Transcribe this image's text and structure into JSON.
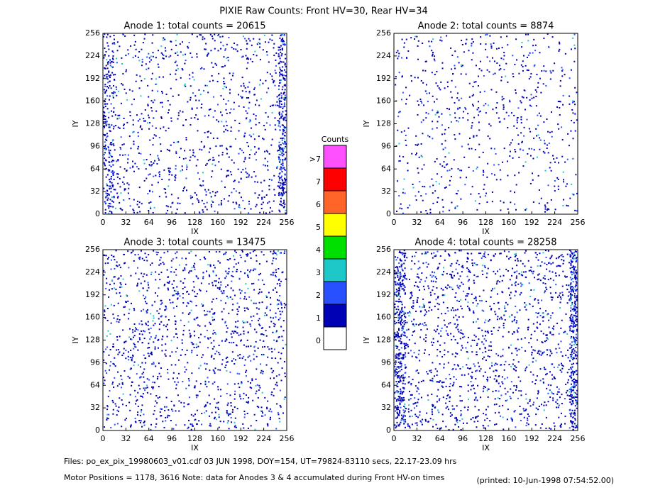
{
  "title": "PIXIE Raw Counts:  Front HV=30, Rear HV=34",
  "chart_data": [
    {
      "type": "heatmap",
      "title": "Anode 1: total counts = 20615",
      "xlabel": "IX",
      "ylabel": "IY",
      "xlim": [
        0,
        256
      ],
      "ylim": [
        0,
        256
      ],
      "xticks": [
        0,
        32,
        64,
        96,
        128,
        160,
        192,
        224,
        256
      ],
      "yticks": [
        0,
        32,
        64,
        96,
        128,
        160,
        192,
        224,
        256
      ]
    },
    {
      "type": "heatmap",
      "title": "Anode 2: total counts = 8874",
      "xlabel": "IX",
      "ylabel": "IY",
      "xlim": [
        0,
        256
      ],
      "ylim": [
        0,
        256
      ],
      "xticks": [
        0,
        32,
        64,
        96,
        128,
        160,
        192,
        224,
        256
      ],
      "yticks": [
        0,
        32,
        64,
        96,
        128,
        160,
        192,
        224,
        256
      ]
    },
    {
      "type": "heatmap",
      "title": "Anode 3: total counts = 13475",
      "xlabel": "IX",
      "ylabel": "IY",
      "xlim": [
        0,
        256
      ],
      "ylim": [
        0,
        256
      ],
      "xticks": [
        0,
        32,
        64,
        96,
        128,
        160,
        192,
        224,
        256
      ],
      "yticks": [
        0,
        32,
        64,
        96,
        128,
        160,
        192,
        224,
        256
      ]
    },
    {
      "type": "heatmap",
      "title": "Anode 4: total counts = 28258",
      "xlabel": "IX",
      "ylabel": "IY",
      "xlim": [
        0,
        256
      ],
      "ylim": [
        0,
        256
      ],
      "xticks": [
        0,
        32,
        64,
        96,
        128,
        160,
        192,
        224,
        256
      ],
      "yticks": [
        0,
        32,
        64,
        96,
        128,
        160,
        192,
        224,
        256
      ]
    }
  ],
  "colorbar": {
    "title": "Counts",
    "labels": [
      "0",
      "1",
      "2",
      "3",
      "4",
      "5",
      "6",
      "7",
      ">7"
    ],
    "colors": [
      "#ffffff",
      "#0000b4",
      "#2850ff",
      "#1ec8c8",
      "#00e000",
      "#ffff00",
      "#ff6428",
      "#ff0000",
      "#ff50ff"
    ]
  },
  "footer": {
    "line1": "Files: po_ex_pix_19980603_v01.cdf     03 JUN 1998, DOY=154, UT=79824-83110 secs, 22.17-23.09 hrs",
    "line2": "Motor Positions = 1178, 3616    Note: data for Anodes 3 & 4 accumulated during Front HV-on times",
    "printed": "(printed: 10-Jun-1998 07:54:52.00)"
  }
}
